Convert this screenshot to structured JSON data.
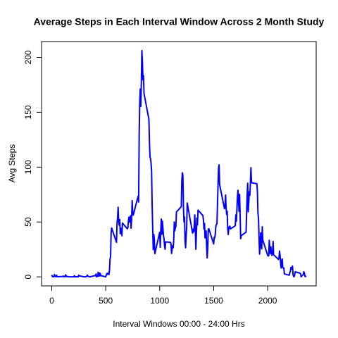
{
  "chart_data": {
    "type": "line",
    "title": "Average Steps in Each Interval Window Across 2 Month Study",
    "x_label": "Interval Windows 00:00 - 24:00 Hrs",
    "y_label": "Avg Steps",
    "color": "#0000ff",
    "x": [
      0,
      5,
      10,
      15,
      20,
      25,
      30,
      35,
      40,
      45,
      50,
      55,
      100,
      105,
      110,
      115,
      120,
      125,
      130,
      135,
      140,
      145,
      150,
      155,
      200,
      205,
      210,
      215,
      220,
      225,
      230,
      235,
      240,
      245,
      250,
      255,
      300,
      305,
      310,
      315,
      320,
      325,
      330,
      335,
      340,
      345,
      350,
      355,
      400,
      405,
      410,
      415,
      420,
      425,
      430,
      435,
      440,
      445,
      450,
      455,
      500,
      505,
      510,
      515,
      520,
      525,
      530,
      535,
      540,
      545,
      550,
      555,
      600,
      605,
      610,
      615,
      620,
      625,
      630,
      635,
      640,
      645,
      650,
      655,
      700,
      705,
      710,
      715,
      720,
      725,
      730,
      735,
      740,
      745,
      750,
      755,
      800,
      805,
      810,
      815,
      820,
      825,
      830,
      835,
      840,
      845,
      850,
      855,
      900,
      905,
      910,
      915,
      920,
      925,
      930,
      935,
      940,
      945,
      950,
      955,
      1000,
      1005,
      1010,
      1015,
      1020,
      1025,
      1030,
      1035,
      1040,
      1045,
      1050,
      1055,
      1100,
      1105,
      1110,
      1115,
      1120,
      1125,
      1130,
      1135,
      1140,
      1145,
      1150,
      1155,
      1200,
      1205,
      1210,
      1215,
      1220,
      1225,
      1230,
      1235,
      1240,
      1245,
      1250,
      1255,
      1300,
      1305,
      1310,
      1315,
      1320,
      1325,
      1330,
      1335,
      1340,
      1345,
      1350,
      1355,
      1400,
      1405,
      1410,
      1415,
      1420,
      1425,
      1430,
      1435,
      1440,
      1445,
      1450,
      1455,
      1500,
      1505,
      1510,
      1515,
      1520,
      1525,
      1530,
      1535,
      1540,
      1545,
      1550,
      1555,
      1600,
      1605,
      1610,
      1615,
      1620,
      1625,
      1630,
      1635,
      1640,
      1645,
      1650,
      1655,
      1700,
      1705,
      1710,
      1715,
      1720,
      1725,
      1730,
      1735,
      1740,
      1745,
      1750,
      1755,
      1800,
      1805,
      1810,
      1815,
      1820,
      1825,
      1830,
      1835,
      1840,
      1845,
      1850,
      1855,
      1900,
      1905,
      1910,
      1915,
      1920,
      1925,
      1930,
      1935,
      1940,
      1945,
      1950,
      1955,
      2000,
      2005,
      2010,
      2015,
      2020,
      2025,
      2030,
      2035,
      2040,
      2045,
      2050,
      2055,
      2100,
      2105,
      2110,
      2115,
      2120,
      2125,
      2130,
      2135,
      2140,
      2145,
      2150,
      2155,
      2200,
      2205,
      2210,
      2215,
      2220,
      2225,
      2230,
      2235,
      2240,
      2245,
      2250,
      2255,
      2300,
      2305,
      2310,
      2315,
      2320,
      2325,
      2330,
      2335,
      2340,
      2345,
      2350,
      2355
    ],
    "values": [
      1.7,
      0.3,
      0.1,
      0.2,
      0.1,
      2.1,
      0.5,
      0.9,
      0,
      1.5,
      0.3,
      0.1,
      0.3,
      0.7,
      0.2,
      0.3,
      0,
      1.1,
      1.8,
      0.2,
      0.2,
      0.4,
      0.3,
      0,
      0,
      0,
      1.1,
      0,
      0,
      0.1,
      0,
      0.2,
      0,
      0,
      1.5,
      0.9,
      0,
      0,
      0,
      0,
      0.2,
      0.6,
      1.6,
      0.6,
      0.5,
      0.1,
      0,
      0,
      1.2,
      0.9,
      2.6,
      0,
      0.3,
      0.4,
      4.1,
      0.7,
      3.5,
      0.8,
      3.1,
      1.1,
      0,
      1.6,
      3,
      2.2,
      3.3,
      3,
      2.1,
      6.1,
      16,
      18.3,
      39.5,
      44.5,
      31.5,
      49.3,
      53.8,
      63.5,
      50,
      47.1,
      52.2,
      39.3,
      44,
      44.2,
      37.4,
      49,
      43.8,
      44.4,
      50.5,
      54.5,
      49.9,
      51,
      55.7,
      44.3,
      52.3,
      69.5,
      57.8,
      56.2,
      73.4,
      68.2,
      129.4,
      157.5,
      171.2,
      155.4,
      177.3,
      206.2,
      195.9,
      179.6,
      183.4,
      167,
      143.5,
      124,
      109.1,
      108.1,
      103.7,
      96,
      66.2,
      45.2,
      24.8,
      38.8,
      35,
      21.1,
      40.6,
      27,
      42.4,
      52.7,
      38.9,
      50.8,
      44.3,
      37.4,
      34.7,
      28.3,
      25.1,
      31.9,
      31.4,
      29.7,
      21.3,
      25.5,
      28.4,
      26.5,
      33.4,
      50,
      42,
      44.6,
      46,
      59.2,
      63.9,
      87.7,
      94.8,
      92.8,
      63.4,
      50.2,
      54.5,
      32.4,
      26.5,
      37.7,
      45.1,
      67.3,
      42.3,
      39.9,
      43.3,
      41,
      46.2,
      56.4,
      42.8,
      25.1,
      40,
      53.5,
      47.3,
      60.8,
      55.8,
      52,
      43.6,
      48.7,
      35.5,
      37.5,
      41.8,
      27.5,
      17.1,
      26.1,
      43.6,
      43.8,
      30,
      36.1,
      35.5,
      38.8,
      46,
      47.8,
      48.1,
      65.3,
      82.9,
      98.7,
      102.1,
      84,
      62.1,
      64.1,
      74.5,
      63.2,
      56.9,
      59.8,
      43.9,
      38.6,
      44.7,
      45.5,
      46.2,
      43.7,
      46.6,
      56.3,
      50.7,
      61.2,
      72.7,
      78.9,
      68.9,
      59.7,
      75.1,
      56.5,
      34.8,
      37.5,
      40.7,
      58,
      74.7,
      85.3,
      59.3,
      67.8,
      77.7,
      74.2,
      85.3,
      99.5,
      86.6,
      85.6,
      84.9,
      77.8,
      58,
      53.4,
      36.3,
      20.7,
      27.4,
      40,
      30.2,
      25.5,
      45.7,
      33.5,
      19.6,
      19,
      19.3,
      33.3,
      26.8,
      21.2,
      27.3,
      21.3,
      19.5,
      21.3,
      32.3,
      20.2,
      15.9,
      17.2,
      23.5,
      19.2,
      12.5,
      8,
      14.7,
      16.3,
      8.7,
      7.8,
      8.1,
      2.6,
      1.5,
      3.7,
      4.8,
      8.5,
      7.1,
      8.7,
      9.8,
      2.2,
      0.3,
      0.1,
      1.6,
      4.6,
      3.3,
      2.8,
      0,
      0.8,
      1,
      1.6,
      2.6,
      4.7,
      3.3,
      0.6,
      0.2,
      1.1
    ],
    "xlim": [
      -94.2,
      2449.2
    ],
    "xticks": [
      0,
      500,
      1000,
      1500,
      2000
    ],
    "ylim": [
      -8.25,
      214.45
    ],
    "yticks": [
      0,
      50,
      100,
      150,
      200
    ]
  }
}
